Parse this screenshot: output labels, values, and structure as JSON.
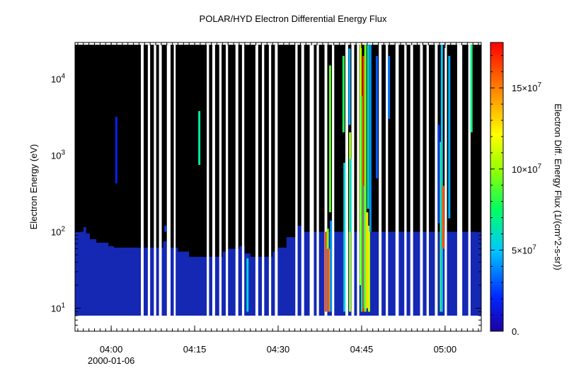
{
  "chart_data": {
    "type": "heatmap",
    "title": "POLAR/HYD  Electron Differential Energy Flux",
    "ylabel": "Electron Energy (eV)",
    "colorbar_label": "Electron Diff. Energy Flux (1/(cm^2-s-sr))",
    "x_range": [
      "03:53:30",
      "05:06:30"
    ],
    "x_ticks": [
      "04:00",
      "04:15",
      "04:30",
      "04:45",
      "05:00"
    ],
    "x_date_label": "2000-01-06",
    "y_scale": "log",
    "y_range": [
      5,
      30000
    ],
    "y_ticks": [
      {
        "base": "10",
        "exp": "1",
        "value": 10
      },
      {
        "base": "10",
        "exp": "2",
        "value": 100
      },
      {
        "base": "10",
        "exp": "3",
        "value": 1000
      },
      {
        "base": "10",
        "exp": "4",
        "value": 10000
      }
    ],
    "data_energy_range": [
      8,
      28000
    ],
    "colorbar_range": [
      0,
      178000000
    ],
    "colorbar_ticks": [
      {
        "value": 0,
        "text": "0.",
        "exp": ""
      },
      {
        "value": 50000000,
        "text": "5×10",
        "exp": "7"
      },
      {
        "value": 100000000,
        "text": "10×10",
        "exp": "7"
      },
      {
        "value": 150000000,
        "text": "15×10",
        "exp": "7"
      }
    ],
    "colors": {
      "background_flux": "#000000",
      "low_flux": "#1428b4",
      "gap": "#ffffff"
    },
    "gaps": [
      [
        "04:05:20",
        "04:05:50"
      ],
      [
        "04:06:35",
        "04:07:00"
      ],
      [
        "04:07:40",
        "04:08:05"
      ],
      [
        "04:08:35",
        "04:09:05"
      ],
      [
        "04:10:00",
        "04:10:40"
      ],
      [
        "04:11:15",
        "04:11:35"
      ],
      [
        "04:17:10",
        "04:17:35"
      ],
      [
        "04:18:10",
        "04:18:40"
      ],
      [
        "04:19:25",
        "04:19:50"
      ],
      [
        "04:20:35",
        "04:21:00"
      ],
      [
        "04:22:20",
        "04:22:50"
      ],
      [
        "04:23:30",
        "04:23:55"
      ],
      [
        "04:25:55",
        "04:26:25"
      ],
      [
        "04:27:05",
        "04:27:30"
      ],
      [
        "04:28:20",
        "04:28:45"
      ],
      [
        "04:29:25",
        "04:29:55"
      ],
      [
        "04:33:05",
        "04:33:30"
      ],
      [
        "04:34:10",
        "04:34:40"
      ],
      [
        "04:35:40",
        "04:36:25"
      ],
      [
        "04:36:55",
        "04:37:20"
      ],
      [
        "04:38:20",
        "04:38:50"
      ],
      [
        "04:39:40",
        "04:40:05"
      ],
      [
        "04:42:05",
        "04:42:35"
      ],
      [
        "04:43:10",
        "04:43:40"
      ],
      [
        "04:44:10",
        "04:44:35"
      ],
      [
        "04:48:05",
        "04:48:35"
      ],
      [
        "04:49:20",
        "04:49:45"
      ],
      [
        "04:51:05",
        "04:51:40"
      ],
      [
        "04:52:40",
        "04:53:05"
      ],
      [
        "04:53:45",
        "04:54:15"
      ],
      [
        "04:55:30",
        "04:56:00"
      ],
      [
        "04:56:40",
        "04:57:05"
      ],
      [
        "04:58:10",
        "04:58:40"
      ],
      [
        "04:59:55",
        "05:00:20"
      ],
      [
        "05:02:10",
        "05:03:05"
      ],
      [
        "05:04:10",
        "05:04:35"
      ]
    ],
    "low_band": [
      {
        "t": "03:53:30",
        "top_ev": 100
      },
      {
        "t": "03:55:00",
        "top_ev": 115
      },
      {
        "t": "03:55:30",
        "top_ev": 95
      },
      {
        "t": "03:56:10",
        "top_ev": 80
      },
      {
        "t": "03:57:20",
        "top_ev": 72
      },
      {
        "t": "03:59:30",
        "top_ev": 65
      },
      {
        "t": "04:00:30",
        "top_ev": 62
      },
      {
        "t": "04:05:20",
        "top_ev": 62
      },
      {
        "t": "04:09:20",
        "top_ev": 75
      },
      {
        "t": "04:10:00",
        "top_ev": 62
      },
      {
        "t": "04:12:00",
        "top_ev": 55
      },
      {
        "t": "04:14:00",
        "top_ev": 47
      },
      {
        "t": "04:18:40",
        "top_ev": 47
      },
      {
        "t": "04:20:00",
        "top_ev": 55
      },
      {
        "t": "04:21:00",
        "top_ev": 60
      },
      {
        "t": "04:23:00",
        "top_ev": 65
      },
      {
        "t": "04:24:00",
        "top_ev": 52
      },
      {
        "t": "04:25:00",
        "top_ev": 47
      },
      {
        "t": "04:29:00",
        "top_ev": 55
      },
      {
        "t": "04:30:00",
        "top_ev": 62
      },
      {
        "t": "04:31:30",
        "top_ev": 85
      },
      {
        "t": "04:33:30",
        "top_ev": 120
      },
      {
        "t": "04:34:30",
        "top_ev": 100
      },
      {
        "t": "04:35:30",
        "top_ev": 100
      },
      {
        "t": "05:06:30",
        "top_ev": 100
      }
    ],
    "streaks": [
      {
        "t": "04:00:55",
        "e1": 430,
        "e2": 3200,
        "flux": 18000000
      },
      {
        "t": "04:09:45",
        "e1": 100,
        "e2": 120,
        "flux": 26000000
      },
      {
        "t": "04:15:50",
        "e1": 750,
        "e2": 3800,
        "flux": 65000000
      },
      {
        "t": "04:24:30",
        "e1": 9,
        "e2": 45,
        "flux": 55000000
      },
      {
        "t": "04:38:35",
        "e1": 9,
        "e2": 100,
        "flux": 160000000
      },
      {
        "t": "04:38:55",
        "e1": 60,
        "e2": 110,
        "flux": 95000000
      },
      {
        "t": "04:39:10",
        "e1": 9,
        "e2": 60,
        "flux": 150000000
      },
      {
        "t": "04:39:20",
        "e1": 180,
        "e2": 15000,
        "flux": 90000000
      },
      {
        "t": "04:39:30",
        "e1": 9,
        "e2": 140,
        "flux": 40000000
      },
      {
        "t": "04:41:45",
        "e1": 2000,
        "e2": 20000,
        "flux": 80000000
      },
      {
        "t": "04:41:55",
        "e1": 9,
        "e2": 800,
        "flux": 55000000
      },
      {
        "t": "04:42:50",
        "e1": 2500,
        "e2": 25000,
        "flux": 45000000
      },
      {
        "t": "04:42:55",
        "e1": 9,
        "e2": 2000,
        "flux": 100000000
      },
      {
        "t": "04:43:00",
        "e1": 100,
        "e2": 900,
        "flux": 60000000
      },
      {
        "t": "04:44:50",
        "e1": 20,
        "e2": 28000,
        "flux": 110000000
      },
      {
        "t": "04:45:05",
        "e1": 9,
        "e2": 6000,
        "flux": 75000000
      },
      {
        "t": "04:45:20",
        "e1": 9,
        "e2": 20000,
        "flux": 170000000
      },
      {
        "t": "04:45:30",
        "e1": 10,
        "e2": 400,
        "flux": 50000000
      },
      {
        "t": "04:45:40",
        "e1": 9,
        "e2": 28000,
        "flux": 95000000
      },
      {
        "t": "04:46:00",
        "e1": 10,
        "e2": 180,
        "flux": 130000000
      },
      {
        "t": "04:46:10",
        "e1": 200,
        "e2": 28000,
        "flux": 60000000
      },
      {
        "t": "04:46:20",
        "e1": 9,
        "e2": 120,
        "flux": 110000000
      },
      {
        "t": "04:46:35",
        "e1": 100,
        "e2": 28000,
        "flux": 40000000
      },
      {
        "t": "04:47:45",
        "e1": 500,
        "e2": 20000,
        "flux": 30000000
      },
      {
        "t": "04:49:55",
        "e1": 3000,
        "e2": 20000,
        "flux": 35000000
      },
      {
        "t": "04:58:50",
        "e1": 130,
        "e2": 2500,
        "flux": 25000000
      },
      {
        "t": "04:59:15",
        "e1": 9,
        "e2": 1500,
        "flux": 90000000
      },
      {
        "t": "04:59:25",
        "e1": 9,
        "e2": 28000,
        "flux": 50000000
      },
      {
        "t": "04:59:40",
        "e1": 60,
        "e2": 400,
        "flux": 160000000
      },
      {
        "t": "05:00:45",
        "e1": 150,
        "e2": 20000,
        "flux": 45000000
      },
      {
        "t": "05:04:45",
        "e1": 2000,
        "e2": 28000,
        "flux": 70000000
      }
    ]
  }
}
